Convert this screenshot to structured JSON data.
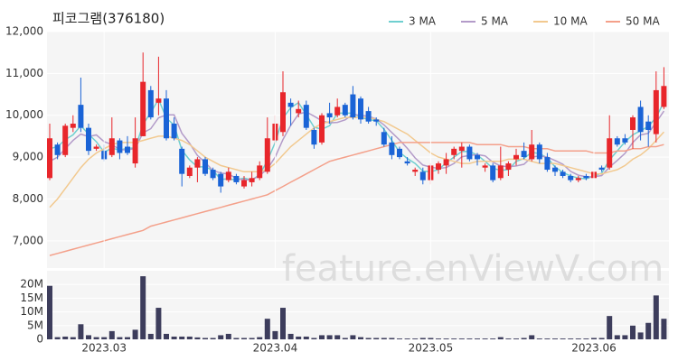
{
  "watermark": "feature.enViewV.com",
  "chart_data": [
    {
      "type": "candlestick",
      "title": "피코그램(376180)",
      "up_color": "#e8262b",
      "down_color": "#1a63d6",
      "grid": true,
      "legend": "top-right",
      "open": [
        8500,
        9300,
        9050,
        9700,
        10250,
        9700,
        9200,
        9150,
        9050,
        9400,
        9250,
        8850,
        9500,
        10600,
        10300,
        10400,
        9800,
        9200,
        8550,
        8750,
        8950,
        8700,
        8600,
        8450,
        8550,
        8300,
        8400,
        8500,
        8650,
        9400,
        9600,
        10300,
        10050,
        10250,
        9650,
        9350,
        10050,
        10000,
        10250,
        10500,
        10400,
        10100,
        9900,
        9600,
        9350,
        9200,
        8900,
        8650,
        8650,
        8450,
        8700,
        8800,
        9050,
        9150,
        9250,
        9050,
        8750,
        8800,
        8500,
        8700,
        8950,
        9150,
        8950,
        9300,
        9000,
        8750,
        8650,
        8550,
        8450,
        8550,
        8500,
        8750,
        8750,
        9450,
        9450,
        9650,
        10200,
        9850,
        9550,
        10200
      ],
      "high": [
        9800,
        9350,
        9800,
        10000,
        10900,
        9800,
        9300,
        9300,
        9950,
        9450,
        9500,
        9950,
        11500,
        10700,
        11400,
        10600,
        9950,
        9250,
        8800,
        9000,
        9000,
        8750,
        8650,
        8750,
        8600,
        8550,
        8650,
        8900,
        9950,
        10000,
        11050,
        10400,
        10350,
        10350,
        9700,
        10050,
        10300,
        10400,
        10300,
        10700,
        10450,
        10200,
        9950,
        9700,
        9500,
        9250,
        9000,
        8750,
        8750,
        8850,
        8900,
        9100,
        9250,
        9350,
        9300,
        9100,
        8850,
        8850,
        9250,
        8900,
        9200,
        9350,
        9650,
        9350,
        9100,
        8800,
        8700,
        8600,
        8550,
        8600,
        8750,
        8800,
        10000,
        9500,
        9550,
        10000,
        10350,
        10000,
        11050,
        11150
      ],
      "low": [
        8450,
        8950,
        9000,
        9600,
        9600,
        9050,
        9150,
        8900,
        9000,
        8950,
        9050,
        8750,
        9500,
        9900,
        10000,
        9400,
        9400,
        8300,
        8500,
        8400,
        8550,
        8450,
        8150,
        8400,
        8350,
        8250,
        8300,
        8450,
        8600,
        9300,
        9500,
        9750,
        9950,
        9650,
        9200,
        9300,
        9800,
        9950,
        9950,
        9900,
        9800,
        9800,
        9750,
        9250,
        8950,
        8950,
        8800,
        8550,
        8350,
        8350,
        8600,
        8600,
        8950,
        8750,
        8900,
        8800,
        8650,
        8400,
        8450,
        8550,
        8800,
        8950,
        8900,
        8850,
        8650,
        8550,
        8500,
        8400,
        8400,
        8450,
        8450,
        8650,
        8700,
        9250,
        9300,
        9200,
        9400,
        9250,
        9350,
        10150
      ],
      "close": [
        9450,
        9050,
        9750,
        9800,
        9700,
        9150,
        9250,
        8950,
        9450,
        9100,
        9100,
        9450,
        10800,
        9950,
        10400,
        9450,
        9450,
        8600,
        8750,
        8950,
        8600,
        8500,
        8300,
        8650,
        8400,
        8450,
        8500,
        8800,
        9450,
        9800,
        10550,
        10200,
        10150,
        9700,
        9300,
        10000,
        9950,
        10200,
        10000,
        9950,
        9900,
        9850,
        9850,
        9300,
        9050,
        9000,
        8850,
        8700,
        8450,
        8800,
        8850,
        8950,
        9200,
        9250,
        8950,
        8950,
        8800,
        8450,
        8800,
        8850,
        9050,
        9000,
        9300,
        8950,
        8700,
        8650,
        8550,
        8450,
        8500,
        8500,
        8650,
        8700,
        9450,
        9300,
        9350,
        9950,
        9600,
        9650,
        10600,
        10700
      ],
      "series": [
        {
          "name": "3 MA",
          "color": "#6fcfd0",
          "values": [
            9200,
            9250,
            9417,
            9533,
            9750,
            9550,
            9367,
            9117,
            9217,
            9167,
            9217,
            9217,
            9783,
            10067,
            10383,
            9933,
            9767,
            9167,
            8933,
            8767,
            8767,
            8683,
            8467,
            8483,
            8450,
            8500,
            8450,
            8583,
            8917,
            9350,
            9933,
            10183,
            10300,
            10017,
            9717,
            9667,
            9750,
            10050,
            10050,
            10050,
            9950,
            9900,
            9867,
            9667,
            9400,
            9117,
            8967,
            8850,
            8667,
            8650,
            8700,
            8867,
            9000,
            9133,
            9133,
            9050,
            8900,
            8733,
            8683,
            8700,
            8900,
            8967,
            9117,
            9083,
            8983,
            8767,
            8633,
            8550,
            8500,
            8483,
            8550,
            8617,
            8933,
            9150,
            9367,
            9533,
            9633,
            9733,
            9950,
            10317
          ]
        },
        {
          "name": "5 MA",
          "color": "#b39bc9",
          "values": [
            8900,
            9000,
            9200,
            9400,
            9550,
            9490,
            9530,
            9370,
            9300,
            9180,
            9170,
            9210,
            9580,
            9680,
            9940,
            10010,
            10010,
            9570,
            9330,
            9040,
            8870,
            8680,
            8620,
            8600,
            8490,
            8460,
            8460,
            8560,
            8720,
            9000,
            9420,
            9760,
            10030,
            10080,
            9980,
            9870,
            9820,
            9830,
            9890,
            10020,
            10000,
            9980,
            9910,
            9770,
            9590,
            9410,
            9210,
            8980,
            8810,
            8760,
            8730,
            8750,
            8850,
            9010,
            9040,
            9060,
            9030,
            8880,
            8790,
            8770,
            8790,
            8830,
            9000,
            9030,
            9000,
            8920,
            8830,
            8660,
            8570,
            8530,
            8530,
            8560,
            8760,
            8920,
            9090,
            9350,
            9530,
            9570,
            9830,
            10100
          ]
        },
        {
          "name": "10 MA",
          "color": "#f2c98f",
          "values": [
            7800,
            8000,
            8250,
            8500,
            8750,
            8950,
            9100,
            9200,
            9300,
            9350,
            9350,
            9350,
            9400,
            9450,
            9500,
            9500,
            9450,
            9400,
            9300,
            9150,
            9000,
            8900,
            8800,
            8750,
            8700,
            8650,
            8650,
            8650,
            8700,
            8850,
            9050,
            9250,
            9400,
            9550,
            9700,
            9800,
            9850,
            9900,
            9950,
            9950,
            9950,
            9950,
            9900,
            9850,
            9750,
            9650,
            9550,
            9400,
            9250,
            9100,
            9000,
            8950,
            8900,
            8850,
            8850,
            8900,
            8900,
            8900,
            8900,
            8950,
            8950,
            8950,
            8900,
            8850,
            8850,
            8850,
            8800,
            8750,
            8700,
            8650,
            8600,
            8600,
            8650,
            8700,
            8800,
            8950,
            9050,
            9200,
            9400,
            9600
          ]
        },
        {
          "name": "50 MA",
          "color": "#f4a08a",
          "values": [
            6650,
            6700,
            6750,
            6800,
            6850,
            6900,
            6950,
            7000,
            7050,
            7100,
            7150,
            7200,
            7250,
            7350,
            7400,
            7450,
            7500,
            7550,
            7600,
            7650,
            7700,
            7750,
            7800,
            7850,
            7900,
            7950,
            8000,
            8050,
            8100,
            8200,
            8300,
            8400,
            8500,
            8600,
            8700,
            8800,
            8900,
            8950,
            9000,
            9050,
            9100,
            9150,
            9200,
            9250,
            9300,
            9350,
            9350,
            9350,
            9350,
            9350,
            9350,
            9350,
            9350,
            9350,
            9350,
            9300,
            9300,
            9300,
            9300,
            9250,
            9250,
            9250,
            9200,
            9200,
            9200,
            9150,
            9150,
            9150,
            9150,
            9150,
            9100,
            9100,
            9100,
            9150,
            9150,
            9200,
            9200,
            9250,
            9250,
            9300
          ]
        }
      ],
      "ylim": [
        6350,
        12000
      ],
      "yticks": [
        {
          "value": 7000,
          "label": "7,000"
        },
        {
          "value": 8000,
          "label": "8,000"
        },
        {
          "value": 9000,
          "label": "9,000"
        },
        {
          "value": 10000,
          "label": "10,000"
        },
        {
          "value": 11000,
          "label": "11,000"
        },
        {
          "value": 12000,
          "label": "12,000"
        }
      ]
    },
    {
      "type": "bar",
      "color": "#3d3d5c",
      "grid": true,
      "categories": [
        null,
        null,
        null,
        null,
        null,
        null,
        null,
        "2023.03",
        null,
        null,
        null,
        null,
        null,
        null,
        null,
        null,
        null,
        null,
        null,
        null,
        null,
        null,
        null,
        null,
        null,
        null,
        null,
        null,
        null,
        "2023.04",
        null,
        null,
        null,
        null,
        null,
        null,
        null,
        null,
        null,
        null,
        null,
        null,
        null,
        null,
        null,
        null,
        null,
        null,
        null,
        "2023.05",
        null,
        null,
        null,
        null,
        null,
        null,
        null,
        null,
        null,
        null,
        null,
        null,
        null,
        null,
        null,
        null,
        null,
        null,
        null,
        null,
        "2023.06",
        null,
        null,
        null,
        null,
        null,
        null,
        null,
        null,
        null
      ],
      "values": [
        19500000,
        800000,
        1000000,
        800000,
        5500000,
        1500000,
        800000,
        800000,
        3000000,
        800000,
        800000,
        3500000,
        23000000,
        2000000,
        11500000,
        2000000,
        1000000,
        1000000,
        1000000,
        700000,
        500000,
        500000,
        1500000,
        2000000,
        500000,
        500000,
        500000,
        800000,
        7500000,
        3000000,
        11500000,
        2000000,
        1000000,
        1000000,
        500000,
        1500000,
        1500000,
        1500000,
        500000,
        1500000,
        800000,
        500000,
        500000,
        500000,
        500000,
        300000,
        300000,
        300000,
        500000,
        500000,
        300000,
        300000,
        300000,
        300000,
        300000,
        300000,
        300000,
        300000,
        800000,
        300000,
        300000,
        500000,
        1500000,
        300000,
        300000,
        300000,
        300000,
        300000,
        300000,
        300000,
        500000,
        500000,
        8500000,
        1500000,
        1500000,
        5000000,
        2500000,
        6000000,
        16000000,
        7500000
      ],
      "ylim": [
        0,
        25000000
      ],
      "yticks": [
        0,
        {
          "value": 5000000,
          "label": "5M"
        },
        {
          "value": 10000000,
          "label": "10M"
        },
        {
          "value": 15000000,
          "label": "15M"
        },
        {
          "value": 20000000,
          "label": "20M"
        }
      ]
    }
  ]
}
